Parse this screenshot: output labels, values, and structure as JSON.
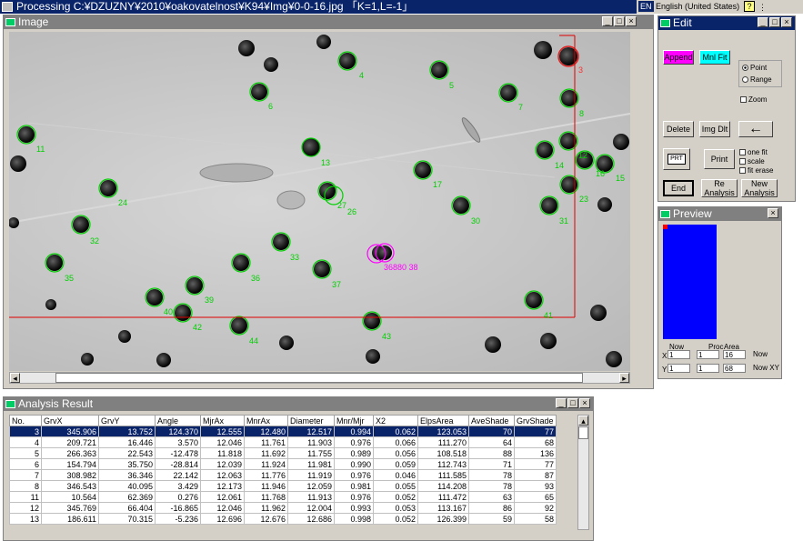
{
  "app": {
    "title": "Processing C:¥DZUZNY¥2010¥oakovatelnost¥K94¥Img¥0-0-16.jpg  「K=1,L=-1」",
    "lang": "EN",
    "lang_name": "English (United States)",
    "help": "?"
  },
  "image_window": {
    "title": "Image"
  },
  "edit_window": {
    "title": "Edit",
    "append": "Append",
    "mnl_fit": "Mnl Fit",
    "point": "Point",
    "range": "Range",
    "zoom": "Zoom",
    "delete": "Delete",
    "img_dlt": "Img Dlt",
    "print": "Print",
    "one_fit": "one fit",
    "scale": "scale",
    "fit_erase": "fit erase",
    "end": "End",
    "re_analysis": "Re Analysis",
    "new_analysis": "New Analysis",
    "save_label": "PRT",
    "colors": {
      "append": "#ff00ff",
      "mnl_fit": "#00ffff"
    }
  },
  "preview_window": {
    "title": "Preview",
    "col_now": "Now",
    "col_proc": "Proc",
    "col_area": "Area",
    "row_x": "X",
    "row_y": "Y",
    "x_now": "1",
    "x_proc": "1",
    "x_area": "16",
    "y_now": "1",
    "y_proc": "1",
    "y_area": "68",
    "now": "Now",
    "now_xy": "Now XY",
    "color": "#0000ff"
  },
  "analysis_window": {
    "title": "Analysis Result",
    "columns": [
      "No.",
      "GrvX",
      "GrvY",
      "Angle",
      "MjrAx",
      "MnrAx",
      "Diameter",
      "Mnr/Mjr",
      "X2",
      "ElpsArea",
      "AveShade",
      "GrvShade"
    ],
    "rows": [
      [
        "3",
        "345.906",
        "13.752",
        "124.370",
        "12.555",
        "12.480",
        "12.517",
        "0.994",
        "0.062",
        "123.053",
        "70",
        "77"
      ],
      [
        "4",
        "209.721",
        "16.446",
        "3.570",
        "12.046",
        "11.761",
        "11.903",
        "0.976",
        "0.066",
        "111.270",
        "64",
        "68"
      ],
      [
        "5",
        "266.363",
        "22.543",
        "-12.478",
        "11.818",
        "11.692",
        "11.755",
        "0.989",
        "0.056",
        "108.518",
        "88",
        "136"
      ],
      [
        "6",
        "154.794",
        "35.750",
        "-28.814",
        "12.039",
        "11.924",
        "11.981",
        "0.990",
        "0.059",
        "112.743",
        "71",
        "77"
      ],
      [
        "7",
        "308.982",
        "36.346",
        "22.142",
        "12.063",
        "11.776",
        "11.919",
        "0.976",
        "0.046",
        "111.585",
        "78",
        "87"
      ],
      [
        "8",
        "346.543",
        "40.095",
        "3.429",
        "12.173",
        "11.946",
        "12.059",
        "0.981",
        "0.055",
        "114.208",
        "78",
        "93"
      ],
      [
        "11",
        "10.564",
        "62.369",
        "0.276",
        "12.061",
        "11.768",
        "11.913",
        "0.976",
        "0.052",
        "111.472",
        "63",
        "65"
      ],
      [
        "12",
        "345.769",
        "66.404",
        "-16.865",
        "12.046",
        "11.962",
        "12.004",
        "0.993",
        "0.053",
        "113.167",
        "86",
        "92"
      ],
      [
        "13",
        "186.611",
        "70.315",
        "-5.236",
        "12.696",
        "12.676",
        "12.686",
        "0.998",
        "0.052",
        "126.399",
        "59",
        "58"
      ]
    ]
  },
  "image_labels": [
    {
      "t": "3",
      "c": "#ff3030"
    },
    {
      "t": "4",
      "c": "#00d000"
    },
    {
      "t": "5",
      "c": "#00d000"
    },
    {
      "t": "6",
      "c": "#00d000"
    },
    {
      "t": "7",
      "c": "#00d000"
    },
    {
      "t": "8",
      "c": "#00d000"
    },
    {
      "t": "11",
      "c": "#00d000"
    },
    {
      "t": "12",
      "c": "#00d000"
    },
    {
      "t": "13",
      "c": "#00d000"
    },
    {
      "t": "14",
      "c": "#00d000"
    },
    {
      "t": "15",
      "c": "#00d000"
    },
    {
      "t": "16",
      "c": "#00d000"
    },
    {
      "t": "17",
      "c": "#00d000"
    },
    {
      "t": "23",
      "c": "#00d000"
    },
    {
      "t": "24",
      "c": "#00d000"
    },
    {
      "t": "26",
      "c": "#00d000"
    },
    {
      "t": "27",
      "c": "#00d000"
    },
    {
      "t": "30",
      "c": "#00d000"
    },
    {
      "t": "31",
      "c": "#00d000"
    },
    {
      "t": "32",
      "c": "#00d000"
    },
    {
      "t": "33",
      "c": "#00d000"
    },
    {
      "t": "35",
      "c": "#00d000"
    },
    {
      "t": "36",
      "c": "#00d000"
    },
    {
      "t": "37",
      "c": "#00d000"
    },
    {
      "t": "39",
      "c": "#00d000"
    },
    {
      "t": "40",
      "c": "#00d000"
    },
    {
      "t": "41",
      "c": "#00d000"
    },
    {
      "t": "42",
      "c": "#00d000"
    },
    {
      "t": "43",
      "c": "#00d000"
    },
    {
      "t": "44",
      "c": "#00d000"
    },
    {
      "t": "36880 38",
      "c": "#ff00ff"
    }
  ]
}
